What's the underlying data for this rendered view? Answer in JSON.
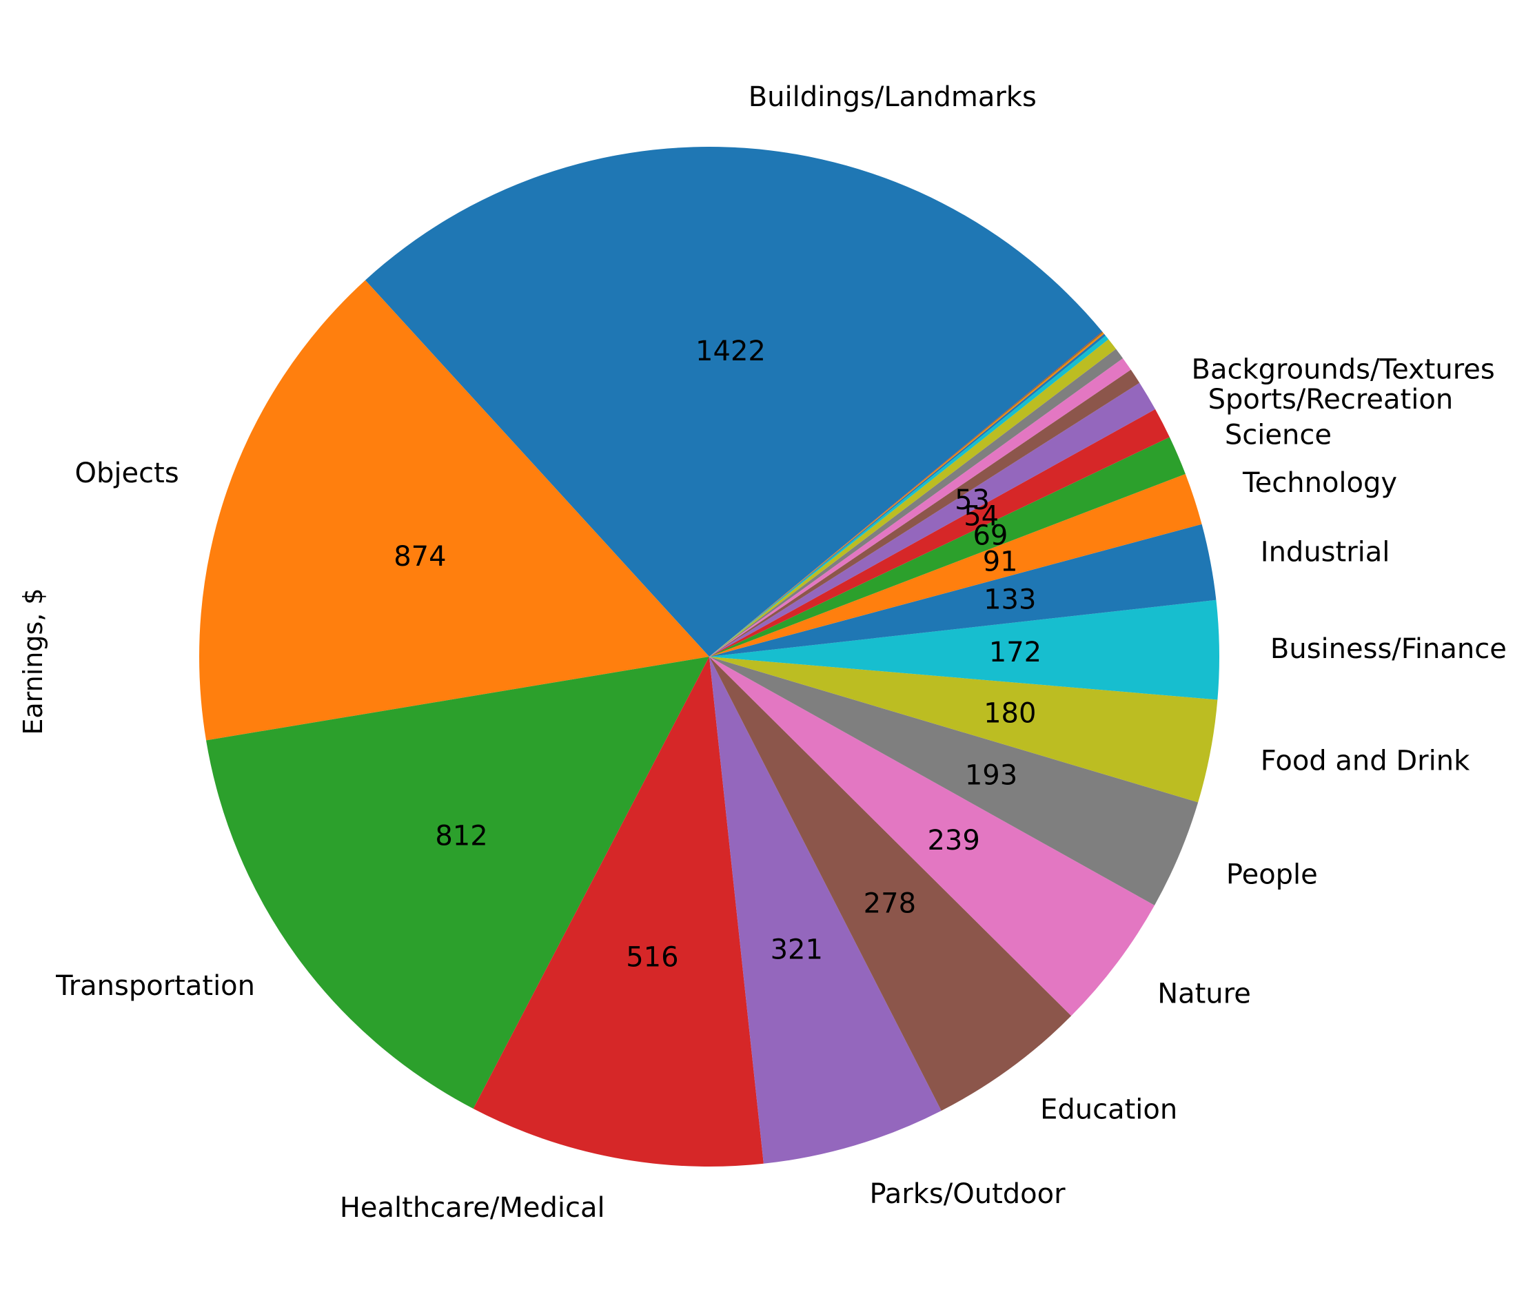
{
  "chart_data": {
    "type": "pie",
    "title": "",
    "ylabel": "Earnings, $",
    "start_angle_deg": 39.6,
    "direction": "counterclockwise",
    "label_distance": 1.1,
    "value_label_distance": 0.6,
    "slices": [
      {
        "label": "Buildings/Landmarks",
        "value": 1422,
        "value_label": "1422",
        "color": "#1f77b4"
      },
      {
        "label": "Objects",
        "value": 874,
        "value_label": "874",
        "color": "#ff7f0e"
      },
      {
        "label": "Transportation",
        "value": 812,
        "value_label": "812",
        "color": "#2ca02c"
      },
      {
        "label": "Healthcare/Medical",
        "value": 516,
        "value_label": "516",
        "color": "#d62728"
      },
      {
        "label": "Parks/Outdoor",
        "value": 321,
        "value_label": "321",
        "color": "#9467bd"
      },
      {
        "label": "Education",
        "value": 278,
        "value_label": "278",
        "color": "#8c564b"
      },
      {
        "label": "Nature",
        "value": 239,
        "value_label": "239",
        "color": "#e377c2"
      },
      {
        "label": "People",
        "value": 193,
        "value_label": "193",
        "color": "#7f7f7f"
      },
      {
        "label": "Food and Drink",
        "value": 180,
        "value_label": "180",
        "color": "#bcbd22"
      },
      {
        "label": "Business/Finance",
        "value": 172,
        "value_label": "172",
        "color": "#17becf"
      },
      {
        "label": "Industrial",
        "value": 133,
        "value_label": "133",
        "color": "#1f77b4"
      },
      {
        "label": "Technology",
        "value": 91,
        "value_label": "91",
        "color": "#ff7f0e"
      },
      {
        "label": "Science",
        "value": 69,
        "value_label": "69",
        "color": "#2ca02c"
      },
      {
        "label": "Sports/Recreation",
        "value": 54,
        "value_label": "54",
        "color": "#d62728"
      },
      {
        "label": "Backgrounds/Textures",
        "value": 53,
        "value_label": "53",
        "color": "#9467bd"
      },
      {
        "label": "",
        "value": 27,
        "value_label": "",
        "color": "#8c564b"
      },
      {
        "label": "",
        "value": 24,
        "value_label": "",
        "color": "#e377c2"
      },
      {
        "label": "",
        "value": 20,
        "value_label": "",
        "color": "#7f7f7f"
      },
      {
        "label": "",
        "value": 21,
        "value_label": "",
        "color": "#bcbd22"
      },
      {
        "label": "",
        "value": 8,
        "value_label": "",
        "color": "#17becf"
      },
      {
        "label": "",
        "value": 4,
        "value_label": "",
        "color": "#1f77b4"
      },
      {
        "label": "",
        "value": 3,
        "value_label": "",
        "color": "#ff7f0e"
      },
      {
        "label": "",
        "value": 1,
        "value_label": "",
        "color": "#2ca02c"
      },
      {
        "label": "",
        "value": 1,
        "value_label": "",
        "color": "#d62728"
      }
    ]
  }
}
